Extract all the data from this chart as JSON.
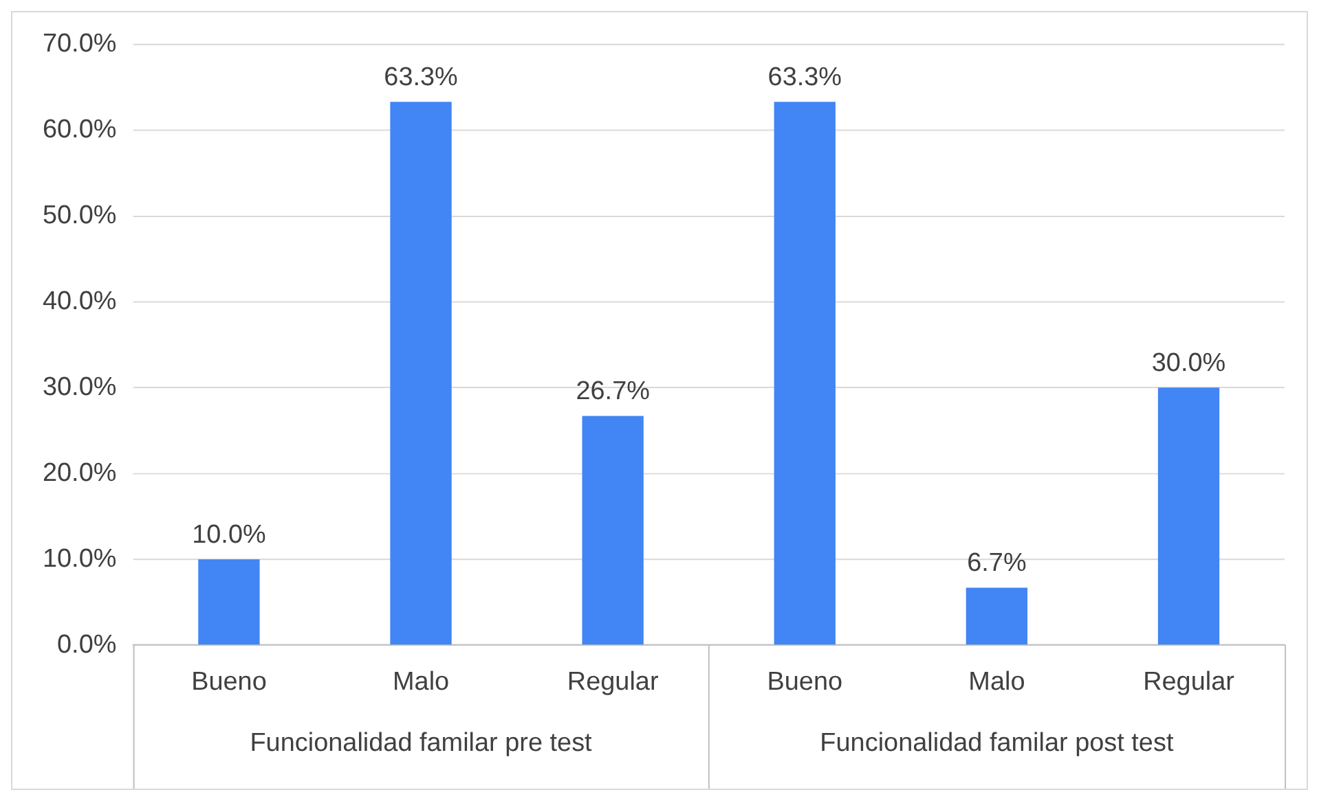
{
  "chart_data": {
    "type": "bar",
    "categories": [
      "Bueno",
      "Malo",
      "Regular",
      "Bueno",
      "Malo",
      "Regular"
    ],
    "values": [
      10.0,
      63.3,
      26.7,
      63.3,
      6.7,
      30.0
    ],
    "value_labels": [
      "10.0%",
      "63.3%",
      "26.7%",
      "63.3%",
      "6.7%",
      "30.0%"
    ],
    "color": "#4285f4",
    "ylim": [
      0,
      70
    ],
    "yticks": [
      {
        "value": 0,
        "label": "0.0%"
      },
      {
        "value": 10,
        "label": "10.0%"
      },
      {
        "value": 20,
        "label": "20.0%"
      },
      {
        "value": 30,
        "label": "30.0%"
      },
      {
        "value": 40,
        "label": "40.0%"
      },
      {
        "value": 50,
        "label": "50.0%"
      },
      {
        "value": 60,
        "label": "60.0%"
      },
      {
        "value": 70,
        "label": "70.0%"
      }
    ],
    "annotations": [
      "Funcionalidad familar pre test",
      "Funcionalidad familar post test"
    ],
    "grid": "y"
  }
}
